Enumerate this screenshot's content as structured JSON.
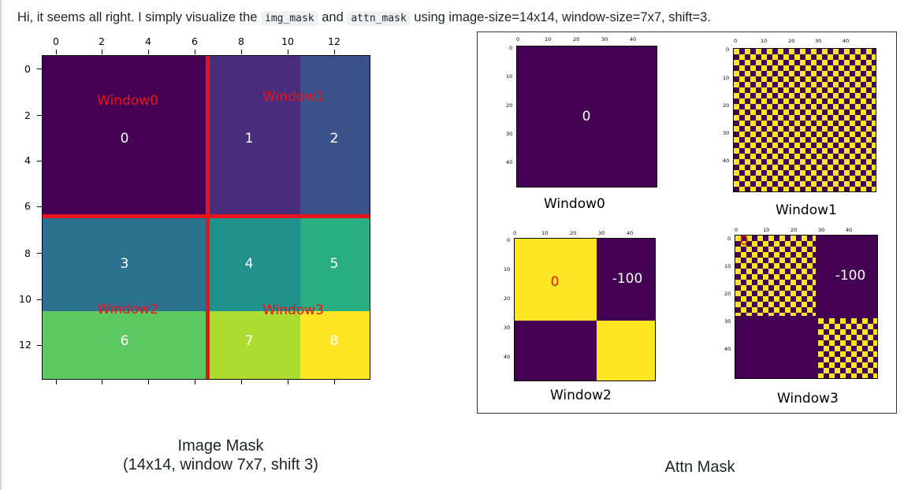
{
  "intro": {
    "prefix": "Hi, it seems all right. I simply visualize the ",
    "code1": "img_mask",
    "middle": " and ",
    "code2": "attn_mask",
    "suffix": " using image-size=14x14, window-size=7x7, shift=3."
  },
  "image_mask": {
    "x_ticks": [
      "0",
      "2",
      "4",
      "6",
      "8",
      "10",
      "12"
    ],
    "y_ticks": [
      "0",
      "2",
      "4",
      "6",
      "8",
      "10",
      "12"
    ],
    "region_labels": [
      "0",
      "1",
      "2",
      "3",
      "4",
      "5",
      "6",
      "7",
      "8"
    ],
    "window_labels": [
      "Window0",
      "Window1",
      "Window2",
      "Window3"
    ],
    "colors": {
      "r0": "#440154",
      "r1": "#472d7b",
      "r2": "#3b528b",
      "r3": "#2c728e",
      "r4": "#21918c",
      "r5": "#28ae80",
      "r6": "#5ec962",
      "r7": "#addc30",
      "r8": "#fde725",
      "divider": "#e8141c"
    },
    "caption_line1": "Image Mask",
    "caption_line2": "(14x14, window 7x7, shift 3)"
  },
  "attn_mask": {
    "mini_x_ticks": [
      "0",
      "10",
      "20",
      "30",
      "40"
    ],
    "mini_y_ticks": [
      "0",
      "10",
      "20",
      "30",
      "40"
    ],
    "window0": {
      "label": "Window0",
      "value": "0"
    },
    "window1": {
      "label": "Window1"
    },
    "window2": {
      "label": "Window2",
      "value_zero": "0",
      "value_masked": "-100"
    },
    "window3": {
      "label": "Window3",
      "value_zero": "0",
      "value_masked": "-100"
    },
    "colors": {
      "low": "#440154",
      "high": "#fde725"
    },
    "caption": "Attn Mask"
  }
}
